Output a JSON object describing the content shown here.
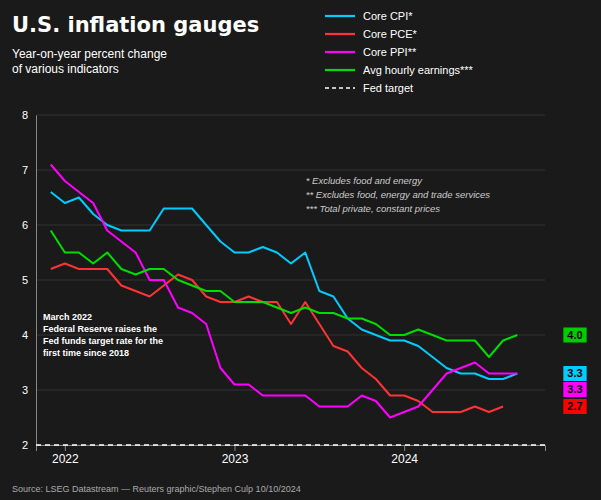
{
  "chart_data": {
    "type": "line",
    "title": "U.S. inflation gauges",
    "subtitle": "Year-on-year percent change\nof various indicators",
    "source": "Source: LSEG Datastream — Reuters graphic/Stephen Culp  10/10/2024",
    "annotation": "March 2022\nFederal Reserve raises the\nFed funds target rate for the\nfirst time since 2018",
    "footnote": "* Excludes food and energy\n** Excludes food, energy and trade services\n*** Total private, constant prices",
    "xlim": [
      2021.83,
      2024.83
    ],
    "xticks": [
      2022,
      2023,
      2024
    ],
    "ylim": [
      2,
      8
    ],
    "yticks": [
      2,
      3,
      4,
      5,
      6,
      7,
      8
    ],
    "grid": true,
    "legend": "upper right",
    "series": [
      {
        "name": "Core CPI*",
        "color": "#00ccff",
        "line_style": "solid",
        "x": [
          2021.917,
          2022.0,
          2022.083,
          2022.167,
          2022.25,
          2022.333,
          2022.417,
          2022.5,
          2022.583,
          2022.667,
          2022.75,
          2022.833,
          2022.917,
          2023.0,
          2023.083,
          2023.167,
          2023.25,
          2023.333,
          2023.417,
          2023.5,
          2023.583,
          2023.667,
          2023.75,
          2023.833,
          2023.917,
          2024.0,
          2024.083,
          2024.167,
          2024.25,
          2024.333,
          2024.417,
          2024.5,
          2024.583,
          2024.667
        ],
        "values": [
          6.6,
          6.4,
          6.5,
          6.2,
          6.0,
          5.9,
          5.9,
          5.9,
          6.3,
          6.3,
          6.3,
          6.0,
          5.7,
          5.5,
          5.5,
          5.6,
          5.5,
          5.3,
          5.5,
          4.8,
          4.7,
          4.3,
          4.1,
          4.0,
          3.9,
          3.9,
          3.8,
          3.6,
          3.4,
          3.3,
          3.3,
          3.2,
          3.2,
          3.3
        ]
      },
      {
        "name": "Core PCE*",
        "color": "#ff3333",
        "line_style": "solid",
        "x": [
          2021.917,
          2022.0,
          2022.083,
          2022.167,
          2022.25,
          2022.333,
          2022.417,
          2022.5,
          2022.583,
          2022.667,
          2022.75,
          2022.833,
          2022.917,
          2023.0,
          2023.083,
          2023.167,
          2023.25,
          2023.333,
          2023.417,
          2023.5,
          2023.583,
          2023.667,
          2023.75,
          2023.833,
          2023.917,
          2024.0,
          2024.083,
          2024.167,
          2024.25,
          2024.333,
          2024.417,
          2024.5,
          2024.583
        ],
        "values": [
          5.2,
          5.3,
          5.2,
          5.2,
          5.2,
          4.9,
          4.8,
          4.7,
          4.9,
          5.1,
          5.0,
          4.7,
          4.6,
          4.6,
          4.7,
          4.6,
          4.6,
          4.2,
          4.6,
          4.2,
          3.8,
          3.7,
          3.4,
          3.2,
          2.9,
          2.9,
          2.8,
          2.6,
          2.6,
          2.6,
          2.7,
          2.6,
          2.7
        ]
      },
      {
        "name": "Core PPI**",
        "color": "#ff00ff",
        "line_style": "solid",
        "x": [
          2021.917,
          2022.0,
          2022.083,
          2022.167,
          2022.25,
          2022.333,
          2022.417,
          2022.5,
          2022.583,
          2022.667,
          2022.75,
          2022.833,
          2022.917,
          2023.0,
          2023.083,
          2023.167,
          2023.25,
          2023.333,
          2023.417,
          2023.5,
          2023.583,
          2023.667,
          2023.75,
          2023.833,
          2023.917,
          2024.0,
          2024.083,
          2024.167,
          2024.25,
          2024.333,
          2024.417,
          2024.5,
          2024.583,
          2024.667
        ],
        "values": [
          7.1,
          6.8,
          6.6,
          6.4,
          5.9,
          5.7,
          5.5,
          5.0,
          5.0,
          4.5,
          4.4,
          4.2,
          3.4,
          3.1,
          3.1,
          2.9,
          2.9,
          2.9,
          2.9,
          2.7,
          2.7,
          2.7,
          2.9,
          2.8,
          2.5,
          2.6,
          2.7,
          3.0,
          3.3,
          3.4,
          3.5,
          3.3,
          3.3,
          3.3
        ]
      },
      {
        "name": "Avg hourly earnings***",
        "color": "#00dd00",
        "line_style": "solid",
        "x": [
          2021.917,
          2022.0,
          2022.083,
          2022.167,
          2022.25,
          2022.333,
          2022.417,
          2022.5,
          2022.583,
          2022.667,
          2022.75,
          2022.833,
          2022.917,
          2023.0,
          2023.083,
          2023.167,
          2023.25,
          2023.333,
          2023.417,
          2023.5,
          2023.583,
          2023.667,
          2023.75,
          2023.833,
          2023.917,
          2024.0,
          2024.083,
          2024.167,
          2024.25,
          2024.333,
          2024.417,
          2024.5,
          2024.583,
          2024.667
        ],
        "values": [
          5.9,
          5.5,
          5.5,
          5.3,
          5.5,
          5.2,
          5.1,
          5.2,
          5.2,
          5.0,
          4.9,
          4.8,
          4.8,
          4.6,
          4.6,
          4.6,
          4.5,
          4.4,
          4.5,
          4.4,
          4.4,
          4.3,
          4.3,
          4.2,
          4.0,
          4.0,
          4.1,
          4.0,
          3.9,
          3.9,
          3.9,
          3.6,
          3.9,
          4.0
        ]
      },
      {
        "name": "Fed target",
        "color": "#ffffff",
        "type": "hline",
        "line_style": "dashed",
        "values": [
          2.0
        ]
      }
    ],
    "end_labels": [
      {
        "label": "4.0",
        "value": 4.0,
        "color": "#00cc00"
      },
      {
        "label": "3.3",
        "value": 3.3,
        "color": "#00ccff"
      },
      {
        "label": "3.3",
        "value": 3.3,
        "color": "#ff00ff"
      },
      {
        "label": "2.7",
        "value": 2.7,
        "color": "#ff0000"
      }
    ]
  }
}
